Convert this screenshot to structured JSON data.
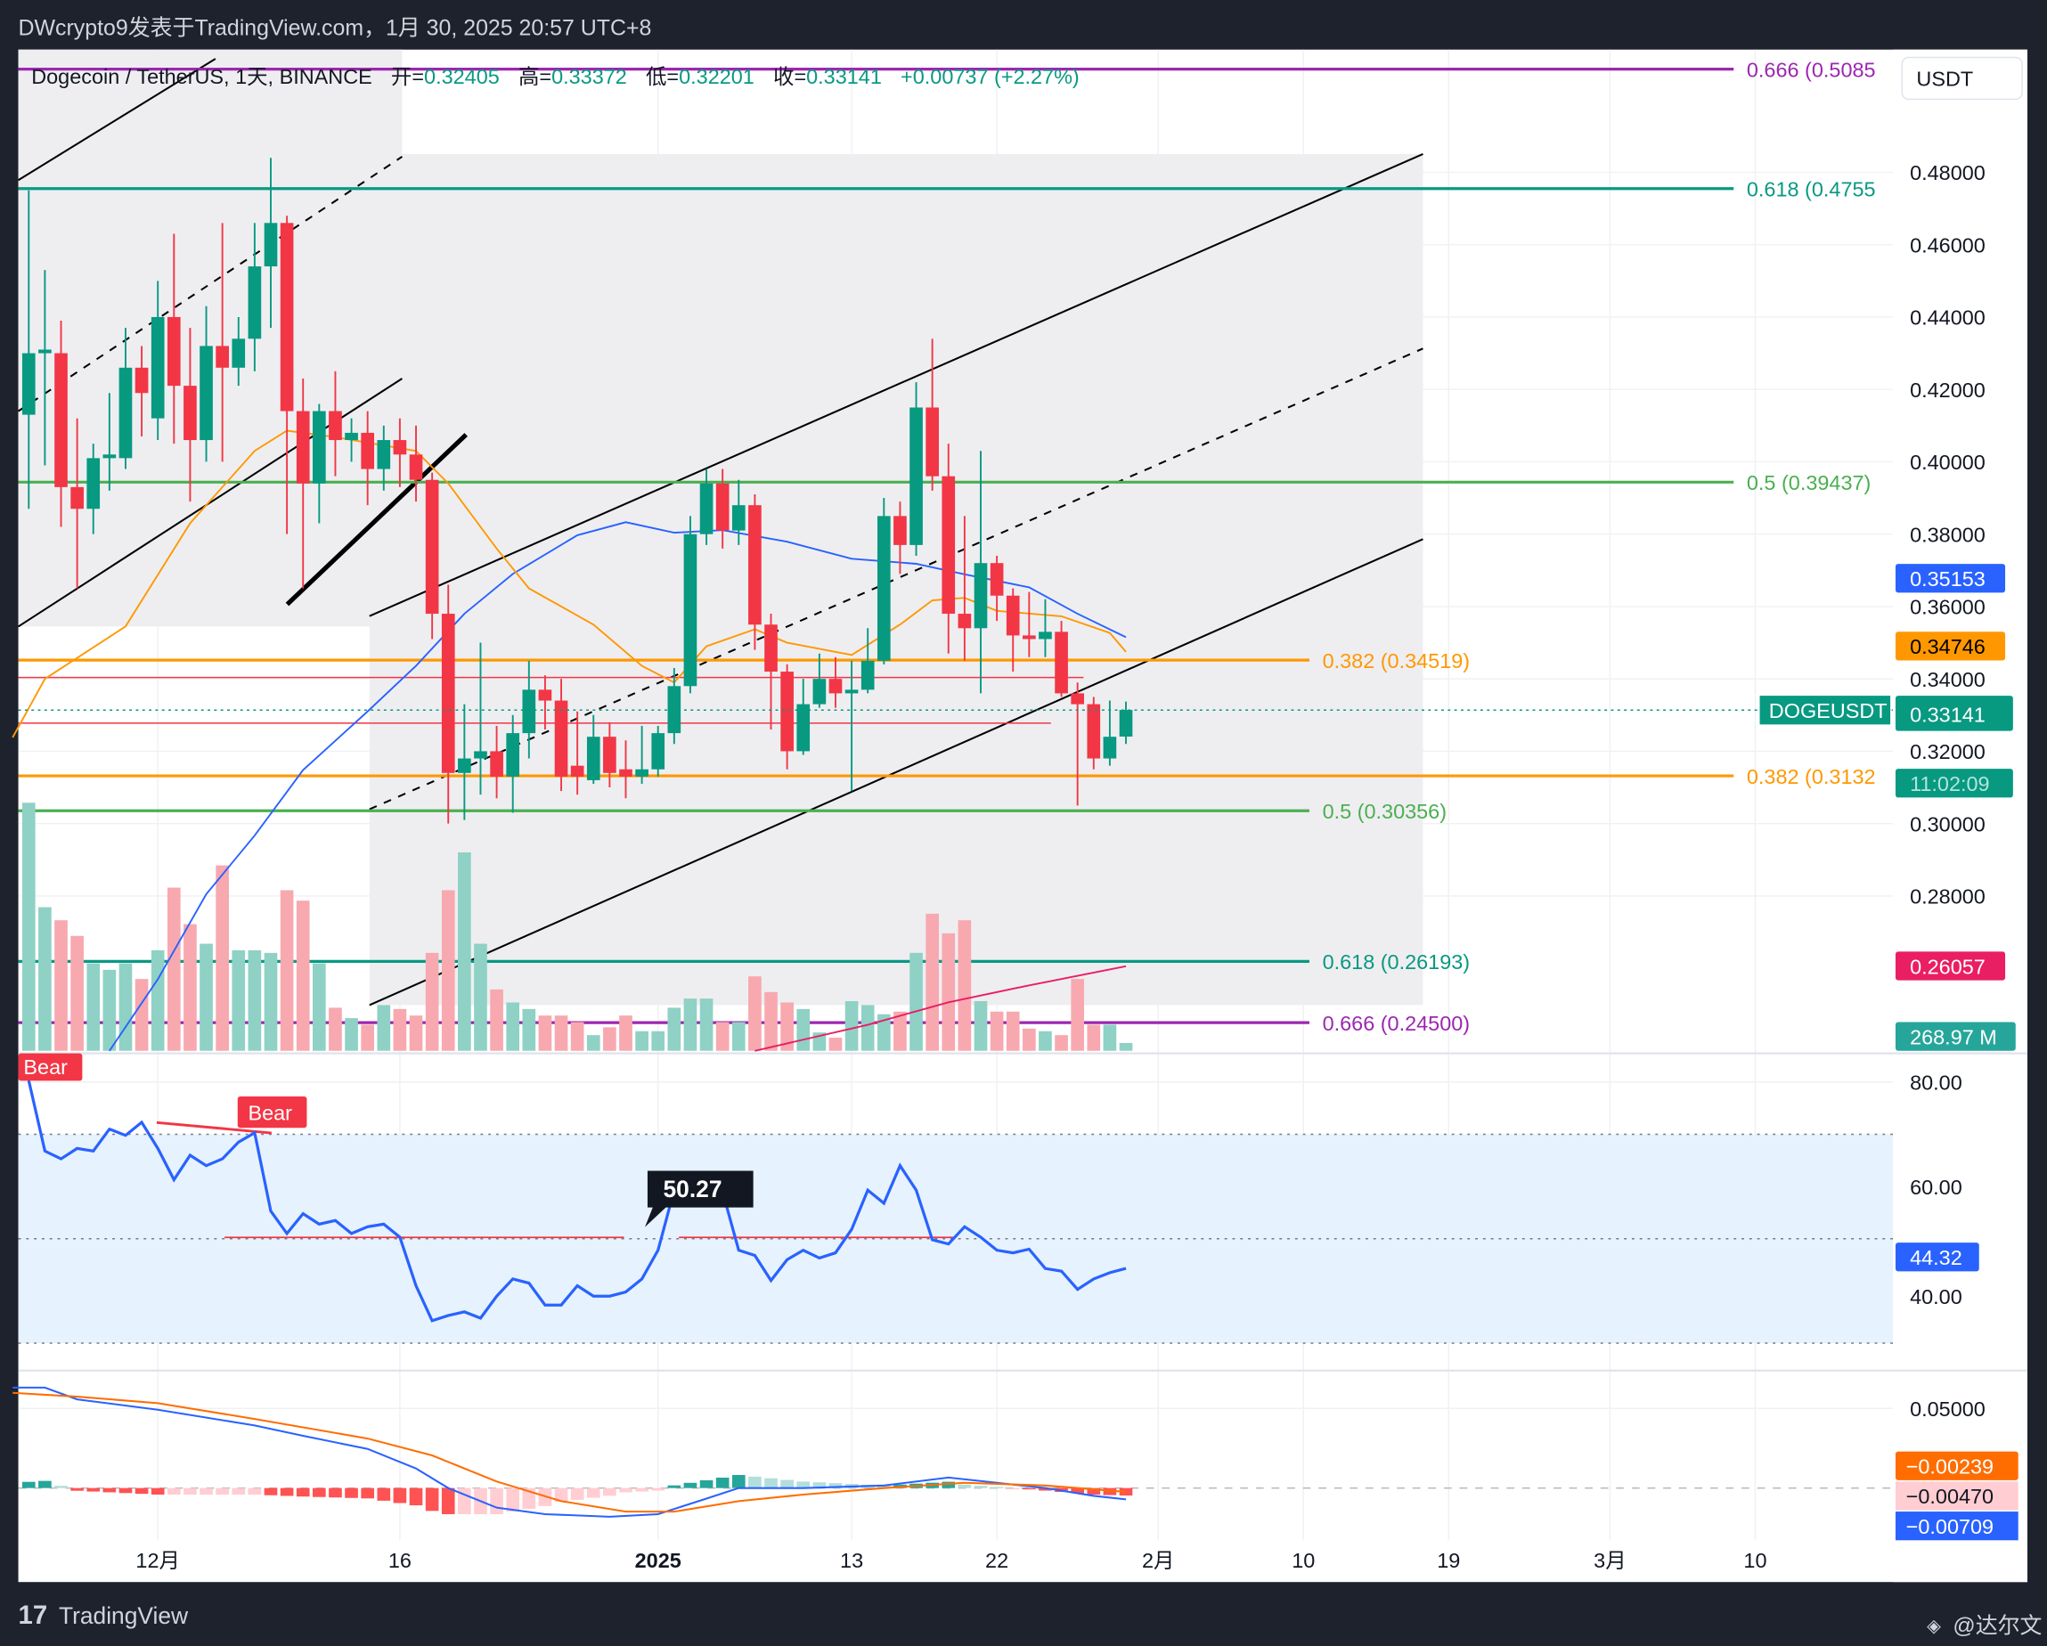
{
  "header": {
    "publisher_line": "DWcrypto9发表于TradingView.com，1月 30, 2025 20:57 UTC+8"
  },
  "legend": {
    "symbol": "Dogecoin / TetherUS, 1天, BINANCE",
    "open_label": "开=",
    "open": "0.32405",
    "high_label": "高=",
    "high": "0.33372",
    "low_label": "低=",
    "low": "0.32201",
    "close_label": "收=",
    "close": "0.33141",
    "change": "+0.00737 (+2.27%)"
  },
  "currency_button": "USDT",
  "price_axis": [
    "0.48000",
    "0.46000",
    "0.44000",
    "0.42000",
    "0.40000",
    "0.38000",
    "0.36000",
    "0.34000",
    "0.32000",
    "0.30000",
    "0.28000"
  ],
  "price_tags": {
    "ma_blue": "0.35153",
    "ma_orange": "0.34746",
    "symbol": "DOGEUSDT",
    "last_price": "0.33141",
    "countdown": "11:02:09",
    "ma_red": "0.26057",
    "volume": "268.97 M"
  },
  "fib_levels": [
    {
      "label": "0.666 (0.5085",
      "price": 0.5085,
      "color": "#9c27b0",
      "span": "long"
    },
    {
      "label": "0.618 (0.4755",
      "price": 0.4755,
      "color": "#089981",
      "span": "long"
    },
    {
      "label": "0.5 (0.39437)",
      "price": 0.39437,
      "color": "#4caf50",
      "span": "long"
    },
    {
      "label": "0.382 (0.34519)",
      "price": 0.34519,
      "color": "#ff9800",
      "span": "short"
    },
    {
      "label": "0.382 (0.3132",
      "price": 0.3132,
      "color": "#ff9800",
      "span": "long"
    },
    {
      "label": "0.5 (0.30356)",
      "price": 0.30356,
      "color": "#4caf50",
      "span": "short"
    },
    {
      "label": "0.618 (0.26193)",
      "price": 0.26193,
      "color": "#089981",
      "span": "short"
    },
    {
      "label": "0.666 (0.24500)",
      "price": 0.245,
      "color": "#9c27b0",
      "span": "short"
    }
  ],
  "time_axis": [
    {
      "label": "12月",
      "date": "2024-12-01"
    },
    {
      "label": "16",
      "date": "2024-12-16"
    },
    {
      "label": "2025",
      "date": "2025-01-01",
      "bold": true
    },
    {
      "label": "13",
      "date": "2025-01-13"
    },
    {
      "label": "22",
      "date": "2025-01-22"
    },
    {
      "label": "2月",
      "date": "2025-02-01"
    },
    {
      "label": "10",
      "date": "2025-02-10"
    },
    {
      "label": "19",
      "date": "2025-02-19"
    },
    {
      "label": "3月",
      "date": "2025-03-01"
    },
    {
      "label": "10",
      "date": "2025-03-10"
    }
  ],
  "rsi_pane": {
    "axis": [
      "80.00",
      "60.00",
      "40.00"
    ],
    "value_tag": "44.32",
    "tooltip": "50.27",
    "bear_labels": [
      "Bear",
      "Bear"
    ],
    "band": [
      30,
      70
    ]
  },
  "macd_pane": {
    "axis": [
      "0.05000"
    ],
    "signal_tag": "−0.00239",
    "histogram_tag": "−0.00470",
    "macd_tag": "−0.00709"
  },
  "footer": {
    "brand": "TradingView",
    "watermark": "@达尔文"
  },
  "colors": {
    "up": "#089981",
    "down": "#f23645",
    "ma_blue": "#2962ff",
    "ma_orange": "#ff9800",
    "ma_red": "#e91e63",
    "up_volume": "#8fd1c5",
    "down_volume": "#f7a9af"
  },
  "chart_data": {
    "type": "candlestick",
    "symbol": "DOGEUSDT",
    "interval": "1D",
    "y_scale": "linear",
    "grid": true,
    "candles_fields": [
      "date",
      "open",
      "high",
      "low",
      "close"
    ],
    "candles": [
      [
        "2024-11-23",
        0.413,
        0.475,
        0.387,
        0.43
      ],
      [
        "2024-11-24",
        0.43,
        0.453,
        0.399,
        0.431
      ],
      [
        "2024-11-25",
        0.43,
        0.439,
        0.382,
        0.393
      ],
      [
        "2024-11-26",
        0.393,
        0.412,
        0.365,
        0.387
      ],
      [
        "2024-11-27",
        0.387,
        0.405,
        0.38,
        0.401
      ],
      [
        "2024-11-28",
        0.401,
        0.419,
        0.392,
        0.402
      ],
      [
        "2024-11-29",
        0.401,
        0.437,
        0.398,
        0.426
      ],
      [
        "2024-11-30",
        0.426,
        0.432,
        0.407,
        0.419
      ],
      [
        "2024-12-01",
        0.412,
        0.45,
        0.406,
        0.44
      ],
      [
        "2024-12-02",
        0.44,
        0.463,
        0.405,
        0.421
      ],
      [
        "2024-12-03",
        0.421,
        0.437,
        0.389,
        0.406
      ],
      [
        "2024-12-04",
        0.406,
        0.443,
        0.4,
        0.432
      ],
      [
        "2024-12-05",
        0.432,
        0.466,
        0.4,
        0.426
      ],
      [
        "2024-12-06",
        0.426,
        0.44,
        0.421,
        0.434
      ],
      [
        "2024-12-07",
        0.434,
        0.466,
        0.425,
        0.454
      ],
      [
        "2024-12-08",
        0.454,
        0.484,
        0.437,
        0.466
      ],
      [
        "2024-12-09",
        0.466,
        0.468,
        0.38,
        0.414
      ],
      [
        "2024-12-10",
        0.414,
        0.423,
        0.365,
        0.394
      ],
      [
        "2024-12-11",
        0.394,
        0.416,
        0.383,
        0.414
      ],
      [
        "2024-12-12",
        0.414,
        0.425,
        0.396,
        0.406
      ],
      [
        "2024-12-13",
        0.406,
        0.412,
        0.4,
        0.408
      ],
      [
        "2024-12-14",
        0.408,
        0.414,
        0.388,
        0.398
      ],
      [
        "2024-12-15",
        0.398,
        0.41,
        0.392,
        0.406
      ],
      [
        "2024-12-16",
        0.406,
        0.412,
        0.393,
        0.402
      ],
      [
        "2024-12-17",
        0.402,
        0.41,
        0.389,
        0.395
      ],
      [
        "2024-12-18",
        0.395,
        0.397,
        0.351,
        0.358
      ],
      [
        "2024-12-19",
        0.358,
        0.366,
        0.3,
        0.314
      ],
      [
        "2024-12-20",
        0.314,
        0.333,
        0.301,
        0.318
      ],
      [
        "2024-12-21",
        0.318,
        0.35,
        0.308,
        0.32
      ],
      [
        "2024-12-22",
        0.32,
        0.327,
        0.307,
        0.313
      ],
      [
        "2024-12-23",
        0.313,
        0.33,
        0.303,
        0.325
      ],
      [
        "2024-12-24",
        0.325,
        0.345,
        0.318,
        0.337
      ],
      [
        "2024-12-25",
        0.337,
        0.341,
        0.326,
        0.334
      ],
      [
        "2024-12-26",
        0.334,
        0.34,
        0.309,
        0.313
      ],
      [
        "2024-12-27",
        0.316,
        0.331,
        0.308,
        0.313
      ],
      [
        "2024-12-28",
        0.312,
        0.33,
        0.311,
        0.324
      ],
      [
        "2024-12-29",
        0.324,
        0.328,
        0.31,
        0.314
      ],
      [
        "2024-12-30",
        0.315,
        0.323,
        0.307,
        0.313
      ],
      [
        "2024-12-31",
        0.313,
        0.327,
        0.311,
        0.315
      ],
      [
        "2025-01-01",
        0.315,
        0.327,
        0.313,
        0.325
      ],
      [
        "2025-01-02",
        0.325,
        0.343,
        0.322,
        0.338
      ],
      [
        "2025-01-03",
        0.338,
        0.385,
        0.336,
        0.38
      ],
      [
        "2025-01-04",
        0.38,
        0.398,
        0.377,
        0.394
      ],
      [
        "2025-01-05",
        0.394,
        0.398,
        0.376,
        0.381
      ],
      [
        "2025-01-06",
        0.381,
        0.395,
        0.377,
        0.388
      ],
      [
        "2025-01-07",
        0.388,
        0.391,
        0.348,
        0.355
      ],
      [
        "2025-01-08",
        0.355,
        0.358,
        0.326,
        0.342
      ],
      [
        "2025-01-09",
        0.342,
        0.344,
        0.315,
        0.32
      ],
      [
        "2025-01-10",
        0.32,
        0.34,
        0.319,
        0.333
      ],
      [
        "2025-01-11",
        0.333,
        0.347,
        0.332,
        0.34
      ],
      [
        "2025-01-12",
        0.34,
        0.346,
        0.332,
        0.336
      ],
      [
        "2025-01-13",
        0.336,
        0.345,
        0.309,
        0.337
      ],
      [
        "2025-01-14",
        0.337,
        0.354,
        0.336,
        0.345
      ],
      [
        "2025-01-15",
        0.345,
        0.39,
        0.344,
        0.385
      ],
      [
        "2025-01-16",
        0.385,
        0.389,
        0.369,
        0.377
      ],
      [
        "2025-01-17",
        0.377,
        0.422,
        0.374,
        0.415
      ],
      [
        "2025-01-18",
        0.415,
        0.434,
        0.392,
        0.396
      ],
      [
        "2025-01-19",
        0.396,
        0.405,
        0.347,
        0.358
      ],
      [
        "2025-01-20",
        0.358,
        0.385,
        0.345,
        0.354
      ],
      [
        "2025-01-21",
        0.354,
        0.403,
        0.336,
        0.372
      ],
      [
        "2025-01-22",
        0.372,
        0.374,
        0.356,
        0.363
      ],
      [
        "2025-01-23",
        0.363,
        0.365,
        0.342,
        0.352
      ],
      [
        "2025-01-24",
        0.352,
        0.364,
        0.346,
        0.351
      ],
      [
        "2025-01-25",
        0.351,
        0.362,
        0.346,
        0.353
      ],
      [
        "2025-01-26",
        0.353,
        0.356,
        0.335,
        0.336
      ],
      [
        "2025-01-27",
        0.336,
        0.339,
        0.305,
        0.333
      ],
      [
        "2025-01-28",
        0.333,
        0.335,
        0.315,
        0.318
      ],
      [
        "2025-01-29",
        0.318,
        0.334,
        0.316,
        0.324
      ],
      [
        "2025-01-30",
        0.32405,
        0.33372,
        0.32201,
        0.33141
      ]
    ],
    "volume_millions": [
      8550,
      4950,
      4500,
      3960,
      3015,
      2790,
      3015,
      2475,
      3465,
      5625,
      4365,
      3690,
      6390,
      3465,
      3465,
      3375,
      5535,
      5175,
      3015,
      1485,
      1125,
      900,
      1575,
      1440,
      1215,
      3375,
      5535,
      6840,
      3690,
      2115,
      1665,
      1440,
      1215,
      1215,
      990,
      540,
      810,
      1215,
      675,
      675,
      1485,
      1800,
      1800,
      990,
      990,
      2565,
      2025,
      1665,
      1440,
      630,
      450,
      1710,
      1575,
      1260,
      1350,
      3375,
      4725,
      4050,
      4500,
      1710,
      1350,
      1350,
      765,
      675,
      540,
      2475,
      900,
      900,
      268.97
    ],
    "ma_orange": [
      [
        "2024-11-22",
        0.3238
      ],
      [
        "2024-11-24",
        0.34
      ],
      [
        "2024-11-29",
        0.3545
      ],
      [
        "2024-12-03",
        0.383
      ],
      [
        "2024-12-07",
        0.403
      ],
      [
        "2024-12-09",
        0.4086
      ],
      [
        "2024-12-12",
        0.4068
      ],
      [
        "2024-12-17",
        0.403
      ],
      [
        "2024-12-19",
        0.394
      ],
      [
        "2024-12-22",
        0.376
      ],
      [
        "2024-12-24",
        0.365
      ],
      [
        "2024-12-28",
        0.355
      ],
      [
        "2024-12-31",
        0.3436
      ],
      [
        "2025-01-02",
        0.339
      ],
      [
        "2025-01-04",
        0.349
      ],
      [
        "2025-01-07",
        0.3537
      ],
      [
        "2025-01-09",
        0.35
      ],
      [
        "2025-01-13",
        0.3466
      ],
      [
        "2025-01-16",
        0.355
      ],
      [
        "2025-01-18",
        0.3617
      ],
      [
        "2025-01-20",
        0.3624
      ],
      [
        "2025-01-22",
        0.3588
      ],
      [
        "2025-01-26",
        0.3573
      ],
      [
        "2025-01-29",
        0.3527
      ],
      [
        "2025-01-30",
        0.34746
      ]
    ],
    "ma_blue": [
      [
        "2024-11-28",
        0.2372
      ],
      [
        "2024-12-01",
        0.257
      ],
      [
        "2024-12-04",
        0.2805
      ],
      [
        "2024-12-07",
        0.2967
      ],
      [
        "2024-12-10",
        0.3148
      ],
      [
        "2024-12-14",
        0.331
      ],
      [
        "2024-12-17",
        0.3436
      ],
      [
        "2024-12-20",
        0.358
      ],
      [
        "2024-12-23",
        0.369
      ],
      [
        "2024-12-27",
        0.3797
      ],
      [
        "2024-12-30",
        0.3833
      ],
      [
        "2025-01-02",
        0.3804
      ],
      [
        "2025-01-05",
        0.3811
      ],
      [
        "2025-01-09",
        0.3779
      ],
      [
        "2025-01-13",
        0.3732
      ],
      [
        "2025-01-17",
        0.3718
      ],
      [
        "2025-01-20",
        0.3689
      ],
      [
        "2025-01-24",
        0.3653
      ],
      [
        "2025-01-27",
        0.358
      ],
      [
        "2025-01-30",
        0.35153
      ]
    ],
    "ma_red": [
      [
        "2025-01-07",
        0.2372
      ],
      [
        "2025-01-14",
        0.2444
      ],
      [
        "2025-01-19",
        0.2506
      ],
      [
        "2025-01-24",
        0.2553
      ],
      [
        "2025-01-30",
        0.26057
      ]
    ],
    "rsi": [
      80.3,
      66.8,
      65.3,
      67.3,
      66.8,
      71,
      69.8,
      72.3,
      67.3,
      61.3,
      66,
      64,
      65.3,
      68.5,
      70.3,
      55.3,
      51,
      54.8,
      52.8,
      53.5,
      51,
      52.3,
      52.8,
      50.3,
      41,
      34.3,
      35.3,
      36,
      34.8,
      39,
      42.3,
      41.5,
      37.3,
      37.3,
      41,
      39,
      39,
      39.8,
      42.3,
      47.8,
      59.3,
      61.8,
      58.5,
      59,
      47.8,
      46.8,
      42,
      46,
      47.8,
      46.3,
      47.3,
      51.8,
      59.3,
      56.8,
      64,
      59.3,
      49.8,
      49,
      52.3,
      50.3,
      47.8,
      47.3,
      48,
      44.3,
      43.8,
      40.3,
      42.3,
      43.5,
      44.32
    ],
    "macd": [
      [
        "2024-11-22",
        0.0631
      ],
      [
        "2024-11-24",
        0.0631
      ],
      [
        "2024-11-26",
        0.0557
      ],
      [
        "2024-12-01",
        0.0492
      ],
      [
        "2024-12-07",
        0.0393
      ],
      [
        "2024-12-10",
        0.0328
      ],
      [
        "2024-12-14",
        0.0246
      ],
      [
        "2024-12-17",
        0.0123
      ],
      [
        "2024-12-19",
        0
      ],
      [
        "2024-12-22",
        -0.0123
      ],
      [
        "2024-12-25",
        -0.0164
      ],
      [
        "2024-12-29",
        -0.018
      ],
      [
        "2025-01-01",
        -0.0164
      ],
      [
        "2025-01-04",
        -0.0066
      ],
      [
        "2025-01-06",
        0
      ],
      [
        "2025-01-10",
        0
      ],
      [
        "2025-01-15",
        0.0016
      ],
      [
        "2025-01-19",
        0.0066
      ],
      [
        "2025-01-22",
        0.0033
      ],
      [
        "2025-01-25",
        0
      ],
      [
        "2025-01-28",
        -0.0049
      ],
      [
        "2025-01-30",
        -0.00709
      ]
    ],
    "macd_signal": [
      [
        "2024-11-22",
        0.0598
      ],
      [
        "2024-11-26",
        0.0574
      ],
      [
        "2024-12-01",
        0.0533
      ],
      [
        "2024-12-07",
        0.0434
      ],
      [
        "2024-12-14",
        0.0311
      ],
      [
        "2024-12-18",
        0.0205
      ],
      [
        "2024-12-22",
        0.0041
      ],
      [
        "2024-12-26",
        -0.0082
      ],
      [
        "2024-12-30",
        -0.0148
      ],
      [
        "2025-01-02",
        -0.0148
      ],
      [
        "2025-01-06",
        -0.0082
      ],
      [
        "2025-01-10",
        -0.0041
      ],
      [
        "2025-01-15",
        0
      ],
      [
        "2025-01-20",
        0.0033
      ],
      [
        "2025-01-25",
        0.0016
      ],
      [
        "2025-01-30",
        -0.00239
      ]
    ]
  }
}
